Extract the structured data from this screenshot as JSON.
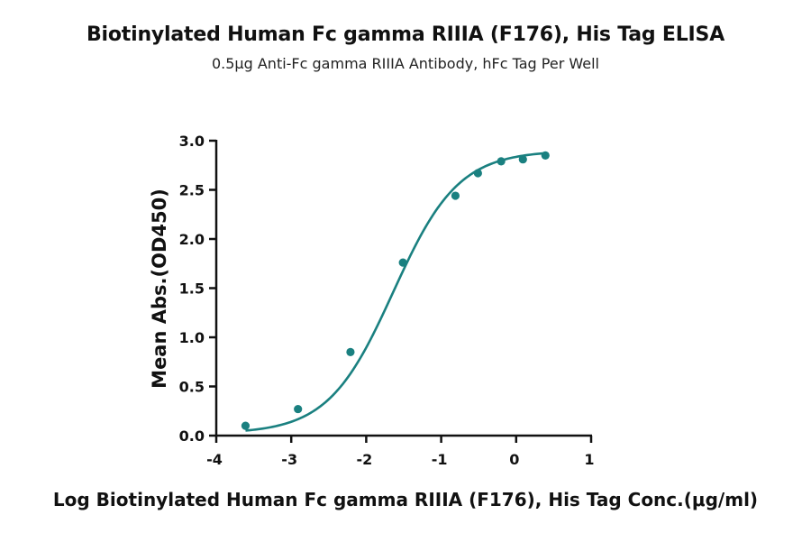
{
  "chart_data": {
    "type": "scatter",
    "title": "Biotinylated Human Fc gamma RIIIA (F176), His Tag ELISA",
    "subtitle": "0.5μg Anti-Fc gamma RIIIA Antibody, hFc Tag Per Well",
    "xlabel": "Log Biotinylated Human Fc gamma RIIIA (F176), His Tag Conc.(μg/ml)",
    "ylabel": "Mean Abs.(OD450)",
    "xlim": [
      -4,
      1
    ],
    "ylim": [
      0,
      3
    ],
    "xticks": [
      "-4",
      "-3",
      "-2",
      "-1",
      "0",
      "1"
    ],
    "yticks": [
      "0.0",
      "0.5",
      "1.0",
      "1.5",
      "2.0",
      "2.5",
      "3.0"
    ],
    "series": [
      {
        "color": "#1a8080",
        "points": [
          {
            "x": -3.61,
            "y": 0.1
          },
          {
            "x": -2.91,
            "y": 0.27
          },
          {
            "x": -2.21,
            "y": 0.85
          },
          {
            "x": -1.51,
            "y": 1.76
          },
          {
            "x": -0.81,
            "y": 2.44
          },
          {
            "x": -0.51,
            "y": 2.67
          },
          {
            "x": -0.2,
            "y": 2.79
          },
          {
            "x": 0.09,
            "y": 2.81
          },
          {
            "x": 0.39,
            "y": 2.85
          }
        ],
        "fit": {
          "model": "4PL",
          "bottom": 0.02,
          "top": 2.9,
          "log_ec50": -1.64,
          "hill": 1.0,
          "x_range": [
            -3.61,
            0.39
          ]
        }
      }
    ],
    "grid": false,
    "legend": "none"
  }
}
